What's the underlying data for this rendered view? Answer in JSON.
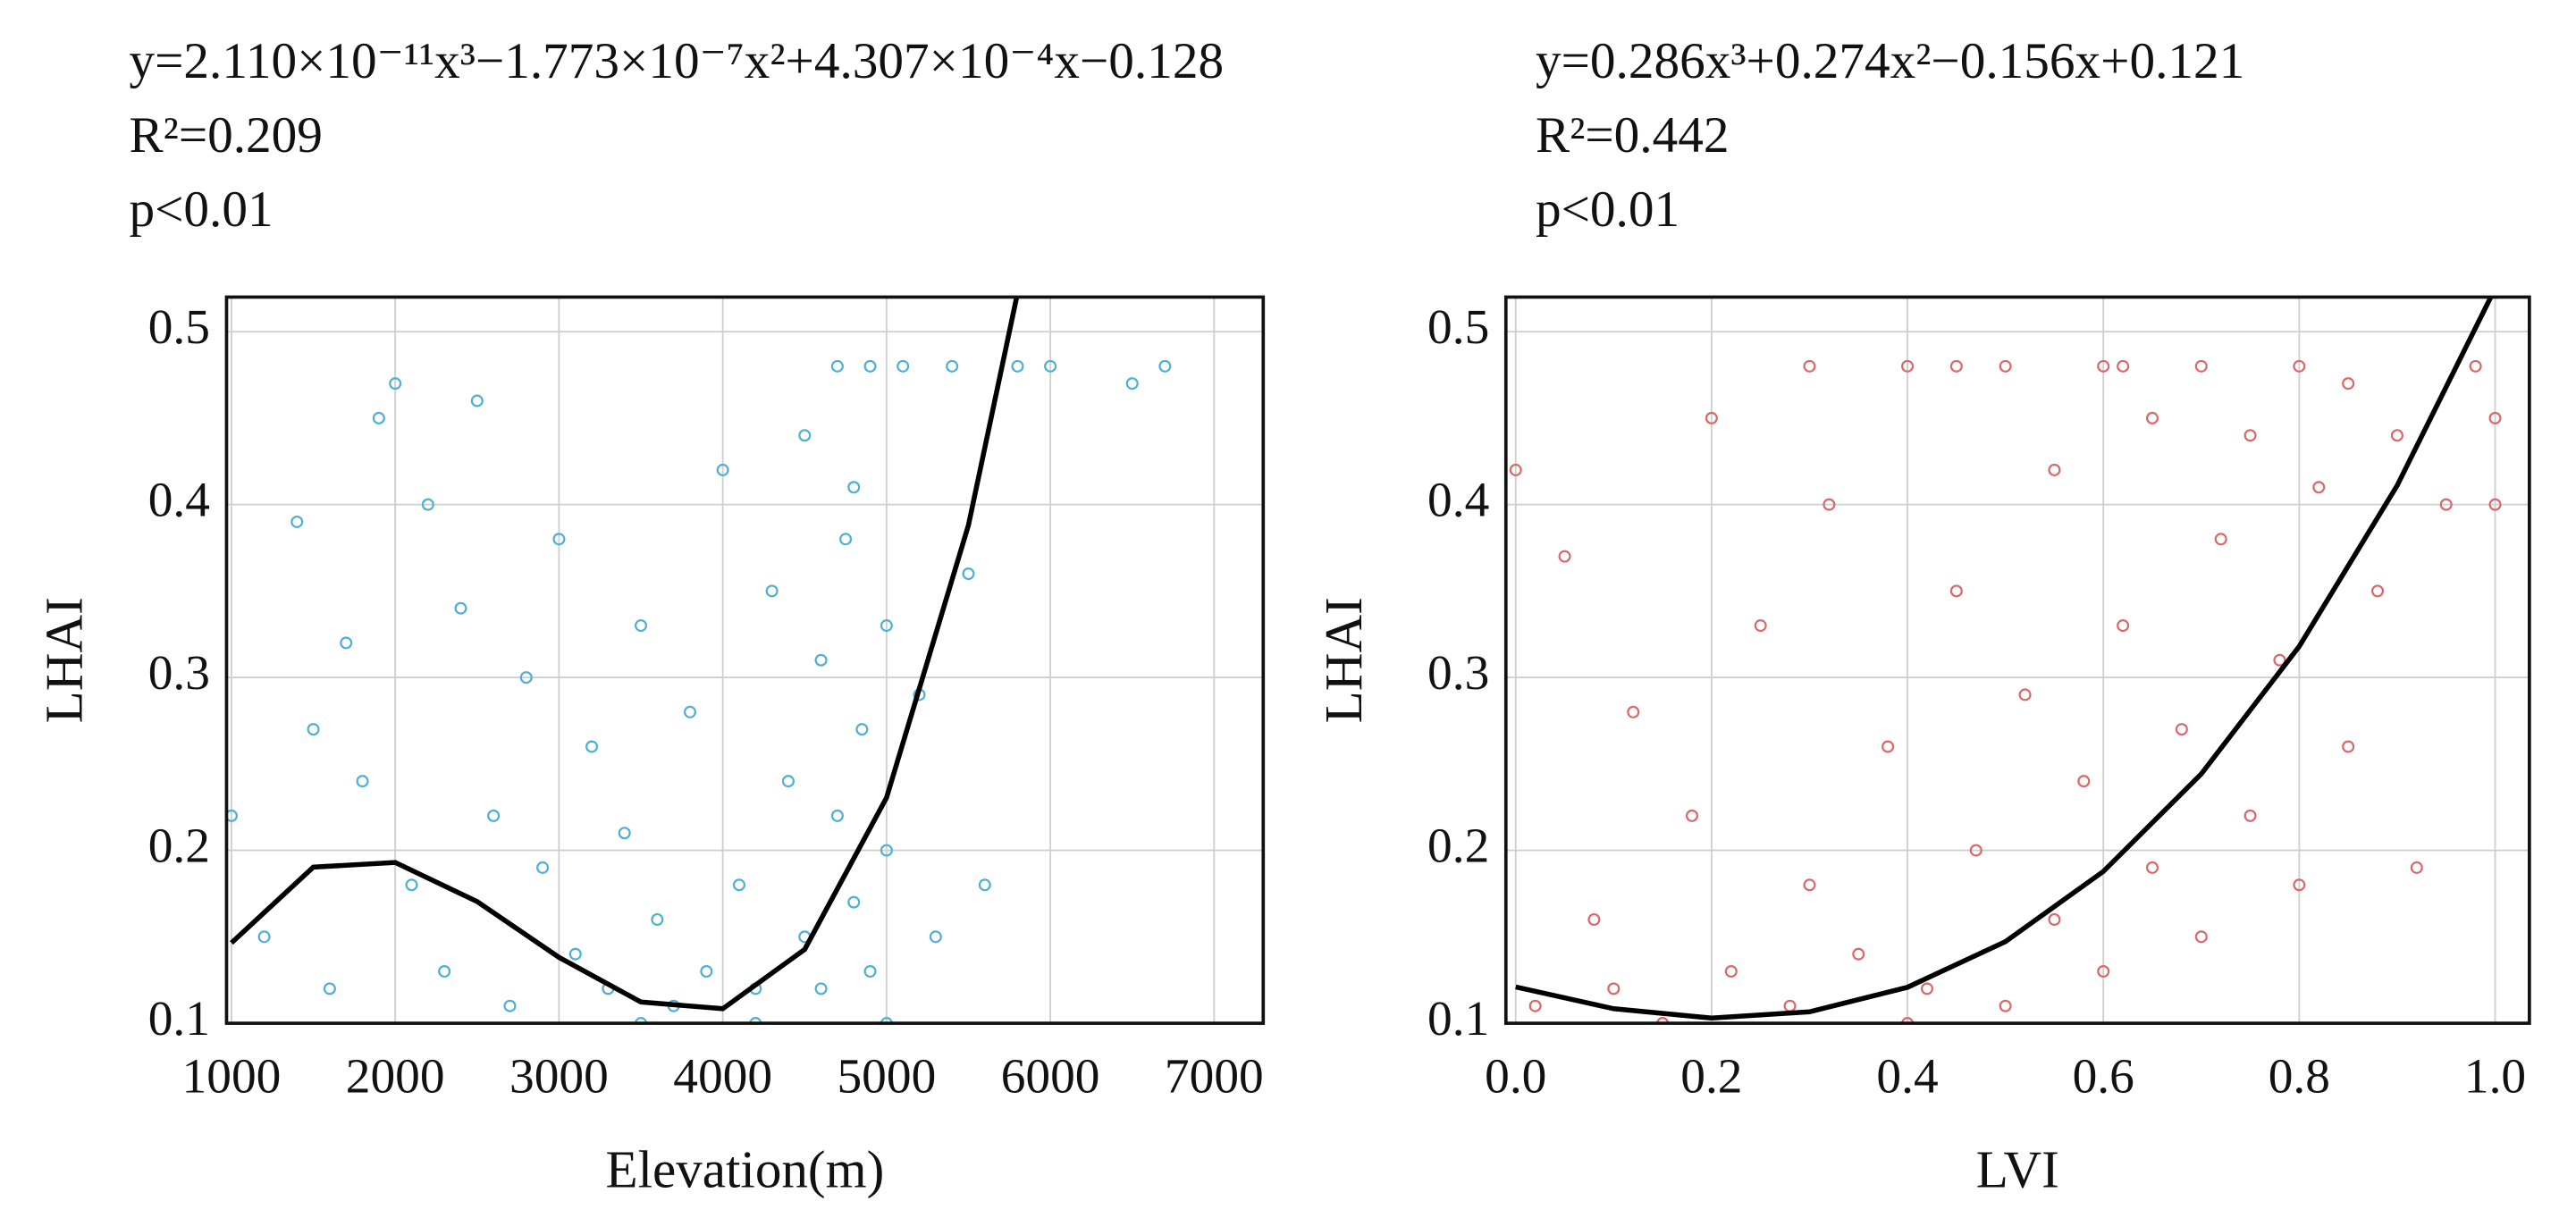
{
  "chart_data": [
    {
      "type": "scatter",
      "annotations": [
        "y=2.110×10⁻¹¹x³−1.773×10⁻⁷x²+4.307×10⁻⁴x−0.128",
        "R²=0.209",
        "p<0.01"
      ],
      "x_label": "Elevation(m)",
      "y_label": "LHAI",
      "xlim": [
        970,
        7300
      ],
      "ylim": [
        0.1,
        0.52
      ],
      "xticks": [
        1000,
        2000,
        3000,
        4000,
        5000,
        6000,
        7000
      ],
      "yticks": [
        0.1,
        0.2,
        0.3,
        0.4,
        0.5
      ],
      "grid": true,
      "series": [
        {
          "kind": "scatter",
          "color": "#4fb0d3",
          "x": [
            1000,
            1200,
            1400,
            1500,
            1600,
            1700,
            1800,
            1900,
            2000,
            2100,
            2200,
            2300,
            2400,
            2500,
            2600,
            2700,
            2800,
            2900,
            3000,
            3100,
            3200,
            3300,
            3400,
            3500,
            3600,
            3700,
            3800,
            3900,
            4000,
            4100,
            4200,
            4300,
            4400,
            4500,
            4500,
            4600,
            4600,
            4700,
            4700,
            4750,
            4800,
            4800,
            4850,
            4900,
            4900,
            5000,
            5000,
            5100,
            5200,
            5300,
            5400,
            5500,
            5600,
            5800,
            6000,
            6500,
            6700,
            3500,
            4200,
            5000
          ],
          "values": [
            0.22,
            0.15,
            0.39,
            0.27,
            0.12,
            0.32,
            0.24,
            0.45,
            0.47,
            0.18,
            0.4,
            0.13,
            0.34,
            0.46,
            0.22,
            0.11,
            0.3,
            0.19,
            0.38,
            0.14,
            0.26,
            0.12,
            0.21,
            0.33,
            0.16,
            0.11,
            0.28,
            0.13,
            0.42,
            0.18,
            0.12,
            0.35,
            0.24,
            0.15,
            0.44,
            0.31,
            0.12,
            0.48,
            0.22,
            0.38,
            0.17,
            0.41,
            0.27,
            0.48,
            0.13,
            0.33,
            0.2,
            0.48,
            0.29,
            0.15,
            0.48,
            0.36,
            0.18,
            0.48,
            0.48,
            0.47,
            0.48,
            0.1,
            0.1,
            0.1
          ]
        },
        {
          "kind": "line",
          "color": "#000000",
          "x": [
            1000,
            1500,
            2000,
            2500,
            3000,
            3500,
            4000,
            4500,
            5000,
            5500,
            5800
          ],
          "values": [
            0.1465,
            0.1903,
            0.193,
            0.1704,
            0.1381,
            0.1123,
            0.1084,
            0.1427,
            0.2305,
            0.3881,
            0.5224
          ]
        }
      ]
    },
    {
      "type": "scatter",
      "annotations": [
        "y=0.286x³+0.274x²−0.156x+0.121",
        "R²=0.442",
        "p<0.01"
      ],
      "x_label": "LVI",
      "y_label": "LHAI",
      "xlim": [
        -0.01,
        1.035
      ],
      "ylim": [
        0.1,
        0.52
      ],
      "xticks": [
        {
          "value": 0,
          "label": "0.0"
        },
        0.2,
        0.4,
        0.6,
        0.8,
        {
          "value": 1,
          "label": "1.0"
        }
      ],
      "yticks": [
        0.1,
        0.2,
        0.3,
        0.4,
        0.5
      ],
      "grid": true,
      "series": [
        {
          "kind": "scatter",
          "color": "#d9696b",
          "x": [
            0.0,
            0.02,
            0.05,
            0.08,
            0.1,
            0.12,
            0.15,
            0.18,
            0.2,
            0.22,
            0.25,
            0.28,
            0.3,
            0.32,
            0.35,
            0.38,
            0.4,
            0.42,
            0.45,
            0.47,
            0.5,
            0.5,
            0.52,
            0.55,
            0.55,
            0.58,
            0.6,
            0.6,
            0.62,
            0.65,
            0.65,
            0.68,
            0.7,
            0.7,
            0.72,
            0.75,
            0.75,
            0.78,
            0.8,
            0.8,
            0.82,
            0.85,
            0.85,
            0.88,
            0.9,
            0.92,
            0.95,
            0.98,
            1.0,
            1.0,
            0.3,
            0.45,
            0.62,
            0.15,
            0.4
          ],
          "values": [
            0.42,
            0.11,
            0.37,
            0.16,
            0.12,
            0.28,
            0.1,
            0.22,
            0.45,
            0.13,
            0.33,
            0.11,
            0.18,
            0.4,
            0.14,
            0.26,
            0.48,
            0.12,
            0.35,
            0.2,
            0.48,
            0.11,
            0.29,
            0.16,
            0.42,
            0.24,
            0.48,
            0.13,
            0.33,
            0.19,
            0.45,
            0.27,
            0.48,
            0.15,
            0.38,
            0.22,
            0.44,
            0.31,
            0.48,
            0.18,
            0.41,
            0.26,
            0.47,
            0.35,
            0.44,
            0.19,
            0.4,
            0.48,
            0.45,
            0.4,
            0.48,
            0.48,
            0.48,
            0.1,
            0.1
          ]
        },
        {
          "kind": "line",
          "color": "#000000",
          "x": [
            0,
            0.1,
            0.2,
            0.3,
            0.4,
            0.5,
            0.6,
            0.7,
            0.8,
            0.9,
            1.0
          ],
          "values": [
            0.121,
            0.1084,
            0.103,
            0.1066,
            0.1208,
            0.1472,
            0.1878,
            0.2442,
            0.318,
            0.411,
            0.525
          ]
        }
      ]
    }
  ]
}
